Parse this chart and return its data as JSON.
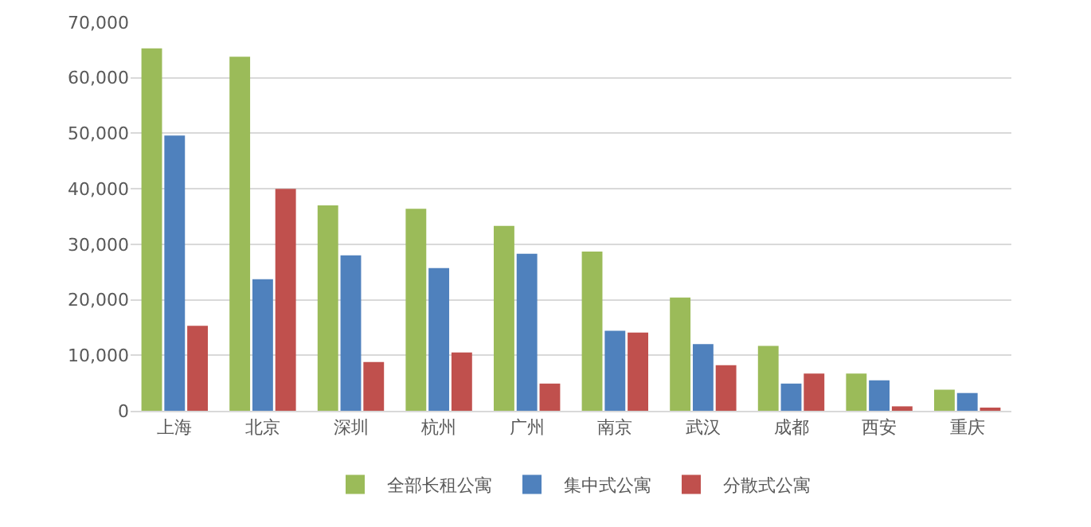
{
  "chart_data": {
    "type": "bar",
    "categories": [
      "上海",
      "北京",
      "深圳",
      "杭州",
      "广州",
      "南京",
      "武汉",
      "成都",
      "西安",
      "重庆"
    ],
    "series": [
      {
        "name": "全部长租公寓",
        "color": "#9bbb59",
        "values": [
          65300,
          63800,
          37000,
          36400,
          33300,
          28700,
          20400,
          11700,
          6700,
          3800
        ]
      },
      {
        "name": "集中式公寓",
        "color": "#4f81bd",
        "values": [
          49600,
          23700,
          28000,
          25700,
          28300,
          14400,
          12000,
          4900,
          5500,
          3200
        ]
      },
      {
        "name": "分散式公寓",
        "color": "#c0504d",
        "values": [
          15300,
          40000,
          8800,
          10500,
          4900,
          14100,
          8200,
          6700,
          800,
          300
        ]
      }
    ],
    "ylim": [
      0,
      70000
    ],
    "yticks": [
      {
        "value": 0,
        "label": "0"
      },
      {
        "value": 10000,
        "label": "10,000"
      },
      {
        "value": 20000,
        "label": "20,000"
      },
      {
        "value": 30000,
        "label": "30,000"
      },
      {
        "value": 40000,
        "label": "40,000"
      },
      {
        "value": 50000,
        "label": "50,000"
      },
      {
        "value": 60000,
        "label": "60,000"
      },
      {
        "value": 70000,
        "label": "70,000"
      }
    ],
    "grid": "y",
    "legend": "bottom"
  }
}
